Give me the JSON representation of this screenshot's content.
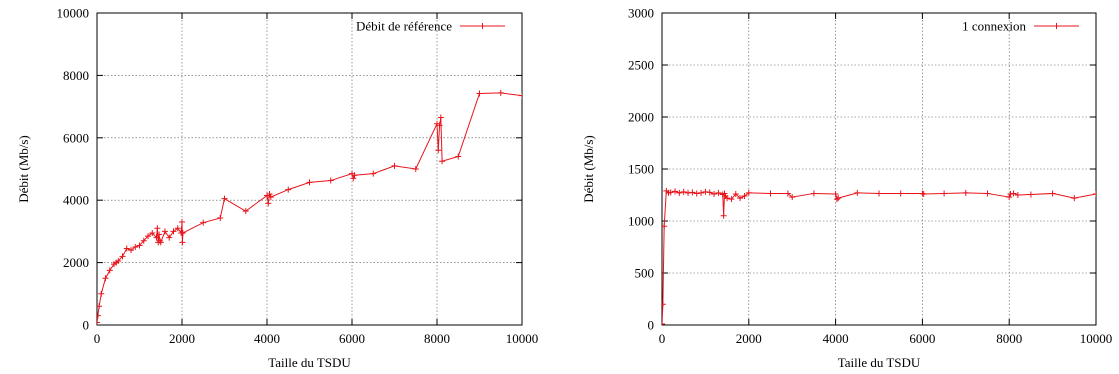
{
  "chart_data": [
    {
      "type": "line",
      "xlabel": "Taille du TSDU",
      "ylabel": "Débit (Mb/s)",
      "xlim": [
        0,
        10000
      ],
      "ylim": [
        0,
        10000
      ],
      "xticks": [
        0,
        2000,
        4000,
        6000,
        8000,
        10000
      ],
      "yticks": [
        0,
        2000,
        4000,
        6000,
        8000,
        10000
      ],
      "grid": true,
      "legend_position": "top-right",
      "series": [
        {
          "name": "Débit de référence",
          "color": "#e8141c",
          "marker": "plus",
          "x": [
            1,
            20,
            50,
            100,
            200,
            300,
            400,
            450,
            500,
            600,
            700,
            800,
            900,
            1000,
            1100,
            1200,
            1300,
            1400,
            1420,
            1440,
            1460,
            1480,
            1500,
            1600,
            1700,
            1800,
            1900,
            1980,
            2000,
            2010,
            2020,
            2500,
            2900,
            3000,
            3500,
            4000,
            4030,
            4060,
            4090,
            4500,
            5000,
            5500,
            6000,
            6030,
            6060,
            6500,
            7000,
            7500,
            8000,
            8030,
            8060,
            8090,
            8120,
            8500,
            9000,
            9500,
            10000
          ],
          "y": [
            80,
            300,
            600,
            1000,
            1500,
            1750,
            1950,
            2000,
            2050,
            2200,
            2450,
            2400,
            2500,
            2550,
            2700,
            2850,
            2950,
            2800,
            3100,
            2650,
            2900,
            2700,
            2650,
            3000,
            2800,
            3000,
            3100,
            2950,
            3300,
            2650,
            2950,
            3280,
            3430,
            4050,
            3650,
            4150,
            3900,
            4200,
            4100,
            4340,
            4570,
            4630,
            4850,
            4700,
            4800,
            4850,
            5100,
            5000,
            6450,
            5600,
            6400,
            6650,
            5250,
            5400,
            7420,
            7440,
            7350
          ]
        }
      ]
    },
    {
      "type": "line",
      "xlabel": "Taille du TSDU",
      "ylabel": "Débit (Mb/s)",
      "xlim": [
        0,
        10000
      ],
      "ylim": [
        0,
        3000
      ],
      "xticks": [
        0,
        2000,
        4000,
        6000,
        8000,
        10000
      ],
      "yticks": [
        0,
        500,
        1000,
        1500,
        2000,
        2500,
        3000
      ],
      "grid": true,
      "legend_position": "top-right",
      "series": [
        {
          "name": "1 connexion",
          "color": "#e8141c",
          "marker": "plus",
          "x": [
            1,
            20,
            50,
            100,
            150,
            200,
            300,
            400,
            500,
            600,
            700,
            800,
            900,
            1000,
            1100,
            1200,
            1300,
            1400,
            1420,
            1440,
            1460,
            1500,
            1600,
            1700,
            1800,
            1900,
            2000,
            2500,
            2900,
            3000,
            3500,
            4000,
            4030,
            4060,
            4500,
            5000,
            5500,
            6000,
            6030,
            6500,
            7000,
            7500,
            8000,
            8030,
            8100,
            8200,
            8500,
            9000,
            9500,
            10000
          ],
          "y": [
            10,
            200,
            950,
            1290,
            1270,
            1275,
            1285,
            1270,
            1280,
            1270,
            1275,
            1265,
            1270,
            1280,
            1275,
            1260,
            1270,
            1255,
            1050,
            1265,
            1240,
            1220,
            1210,
            1260,
            1220,
            1240,
            1270,
            1265,
            1265,
            1230,
            1265,
            1260,
            1210,
            1220,
            1270,
            1265,
            1265,
            1265,
            1260,
            1265,
            1270,
            1265,
            1230,
            1260,
            1265,
            1250,
            1255,
            1265,
            1220,
            1260
          ]
        }
      ]
    }
  ]
}
